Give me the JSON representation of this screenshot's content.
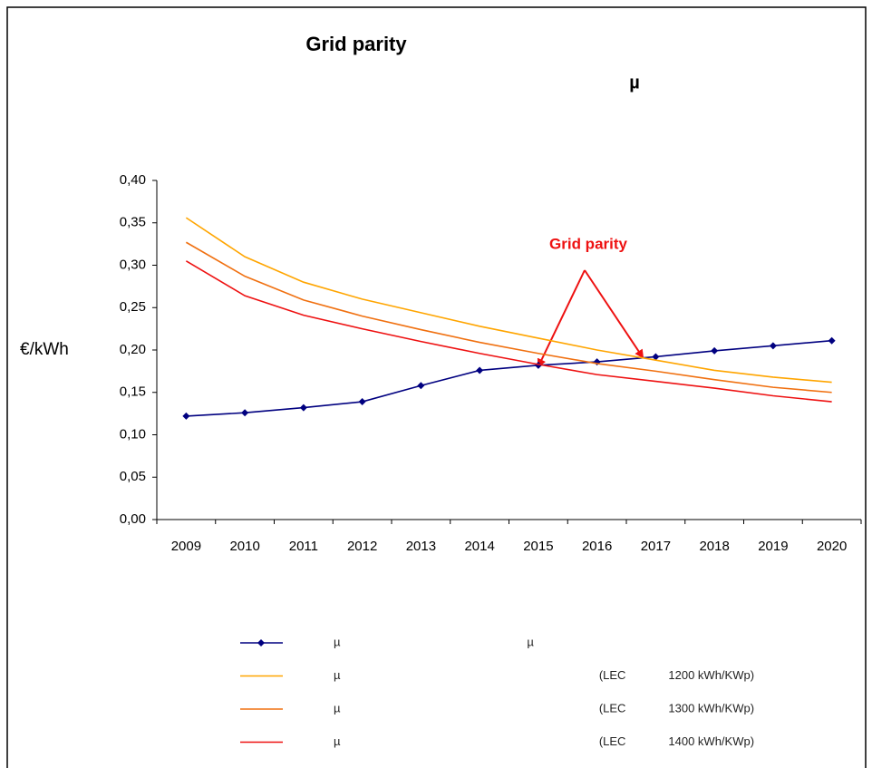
{
  "chart_data": {
    "type": "line",
    "title": "Grid parity",
    "subtitle": "µ",
    "y_label": "€/kWh",
    "annotation": "Grid parity",
    "categories": [
      "2009",
      "2010",
      "2011",
      "2012",
      "2013",
      "2014",
      "2015",
      "2016",
      "2017",
      "2018",
      "2019",
      "2020"
    ],
    "series": [
      {
        "name": "µ                                                         µ",
        "color": "#000080",
        "marker": "diamond",
        "values": [
          0.122,
          0.126,
          0.132,
          0.139,
          0.158,
          0.176,
          0.182,
          0.186,
          0.192,
          0.199,
          0.205,
          0.211
        ]
      },
      {
        "name": "µ                                                                               (LEC             1200 kWh/KWp)",
        "color": "#ffa500",
        "values": [
          0.356,
          0.31,
          0.28,
          0.26,
          0.244,
          0.228,
          0.214,
          0.2,
          0.188,
          0.176,
          0.168,
          0.162
        ]
      },
      {
        "name": "µ                                                                               (LEC             1300 kWh/KWp)",
        "color": "#f07010",
        "values": [
          0.327,
          0.287,
          0.259,
          0.24,
          0.224,
          0.209,
          0.196,
          0.184,
          0.175,
          0.165,
          0.156,
          0.15
        ]
      },
      {
        "name": "µ                                                                               (LEC             1400 kWh/KWp)",
        "color": "#ee1111",
        "values": [
          0.305,
          0.264,
          0.241,
          0.225,
          0.21,
          0.196,
          0.183,
          0.171,
          0.163,
          0.155,
          0.146,
          0.139
        ]
      }
    ],
    "ylim": [
      0,
      0.4
    ],
    "yticks": [
      {
        "value": 0,
        "label": "0,00"
      },
      {
        "value": 0.05,
        "label": "0,05"
      },
      {
        "value": 0.1,
        "label": "0,10"
      },
      {
        "value": 0.15,
        "label": "0,15"
      },
      {
        "value": 0.2,
        "label": "0,20"
      },
      {
        "value": 0.25,
        "label": "0,25"
      },
      {
        "value": 0.3,
        "label": "0,30"
      },
      {
        "value": 0.35,
        "label": "0,35"
      },
      {
        "value": 0.4,
        "label": "0,40"
      }
    ],
    "grid": false,
    "legend": "bottom"
  }
}
